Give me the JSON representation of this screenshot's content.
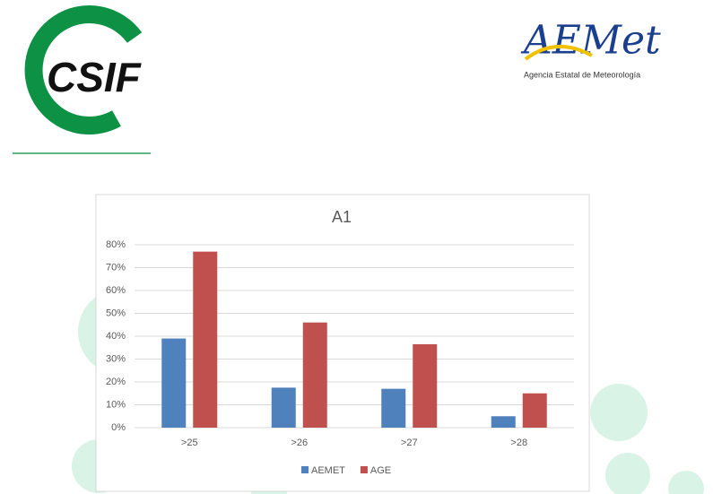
{
  "header": {
    "left_logo": "CSIF",
    "right_logo": "AEMet",
    "right_logo_subtitle": "Agencia Estatal de Meteorología"
  },
  "chart_data": {
    "type": "bar",
    "title": "A1",
    "categories": [
      ">25",
      ">26",
      ">27",
      ">28"
    ],
    "series": [
      {
        "name": "AEMET",
        "color": "#4f81bd",
        "values": [
          39,
          17.5,
          17,
          5
        ]
      },
      {
        "name": "AGE",
        "color": "#c0504d",
        "values": [
          77,
          46,
          36.5,
          15
        ]
      }
    ],
    "ylim": [
      0,
      80
    ],
    "yticks": [
      {
        "value": 0,
        "label": "0%"
      },
      {
        "value": 10,
        "label": "10%"
      },
      {
        "value": 20,
        "label": "20%"
      },
      {
        "value": 30,
        "label": "30%"
      },
      {
        "value": 40,
        "label": "40%"
      },
      {
        "value": 50,
        "label": "50%"
      },
      {
        "value": 60,
        "label": "60%"
      },
      {
        "value": 70,
        "label": "70%"
      },
      {
        "value": 80,
        "label": "80%"
      }
    ],
    "grid": true,
    "legend": "bottom"
  }
}
